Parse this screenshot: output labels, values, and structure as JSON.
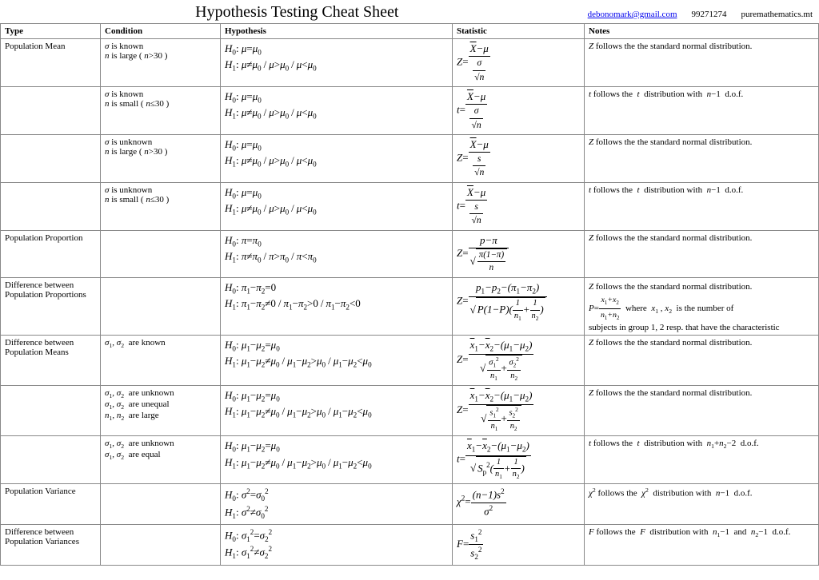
{
  "header": {
    "title": "Hypothesis Testing Cheat Sheet",
    "email": "debonomark@gmail.com",
    "id": "99271274",
    "site": "puremathematics.mt"
  },
  "columns": {
    "type": "Type",
    "condition": "Condition",
    "hypothesis": "Hypothesis",
    "statistic": "Statistic",
    "notes": "Notes"
  },
  "rows": [
    {
      "type": "Population Mean",
      "condition_html": "<span class='math'>σ</span> is known<br><span class='math'>n</span> is large ( <span class='math'>n</span>&gt;30 )",
      "hypothesis_html": "<span class='math'>H</span><sub>0</sub>: <span class='math'>μ</span>=<span class='math'>μ</span><sub>0</sub><br><span class='math'>H</span><sub>1</sub>: <span class='math'>μ</span>≠<span class='math'>μ</span><sub>0</sub><span class='sep'>/</span><span class='math'>μ</span>&gt;<span class='math'>μ</span><sub>0</sub><span class='sep'>/</span><span class='math'>μ</span>&lt;<span class='math'>μ</span><sub>0</sub>",
      "stat_html": "<span class='math'>Z</span>=<span class='frac'><span class='num'><span style='text-decoration:overline'>X</span>−μ</span><span class='den'><span class='frac' style='font-size:0.9em'><span class='num'>σ</span><span class='den'><span class='up'>√</span>n</span></span></span></span>",
      "notes_html": "<span class='math'>Z</span> follows the the standard normal distribution."
    },
    {
      "type": "",
      "condition_html": "<span class='math'>σ</span> is known<br><span class='math'>n</span> is small ( <span class='math'>n</span>≤30 )",
      "hypothesis_html": "<span class='math'>H</span><sub>0</sub>: <span class='math'>μ</span>=<span class='math'>μ</span><sub>0</sub><br><span class='math'>H</span><sub>1</sub>: <span class='math'>μ</span>≠<span class='math'>μ</span><sub>0</sub><span class='sep'>/</span><span class='math'>μ</span>&gt;<span class='math'>μ</span><sub>0</sub><span class='sep'>/</span><span class='math'>μ</span>&lt;<span class='math'>μ</span><sub>0</sub>",
      "stat_html": "<span class='math'>t</span>=<span class='frac'><span class='num'><span style='text-decoration:overline'>X</span>−μ</span><span class='den'><span class='frac' style='font-size:0.9em'><span class='num'>σ</span><span class='den'><span class='up'>√</span>n</span></span></span></span>",
      "notes_html": "<span class='math'>t</span> follows the &nbsp;<span class='math'>t</span>&nbsp; distribution with &nbsp;<span class='math'>n</span>−1&nbsp; d.o.f."
    },
    {
      "type": "",
      "condition_html": "<span class='math'>σ</span> is unknown<br><span class='math'>n</span> is large ( <span class='math'>n</span>&gt;30 )",
      "hypothesis_html": "<span class='math'>H</span><sub>0</sub>: <span class='math'>μ</span>=<span class='math'>μ</span><sub>0</sub><br><span class='math'>H</span><sub>1</sub>: <span class='math'>μ</span>≠<span class='math'>μ</span><sub>0</sub><span class='sep'>/</span><span class='math'>μ</span>&gt;<span class='math'>μ</span><sub>0</sub><span class='sep'>/</span><span class='math'>μ</span>&lt;<span class='math'>μ</span><sub>0</sub>",
      "stat_html": "<span class='math'>Z</span>=<span class='frac'><span class='num'><span style='text-decoration:overline'>X</span>−μ</span><span class='den'><span class='frac' style='font-size:0.9em'><span class='num'>s</span><span class='den'><span class='up'>√</span>n</span></span></span></span>",
      "notes_html": "<span class='math'>Z</span> follows the the standard normal distribution."
    },
    {
      "type": "",
      "condition_html": "<span class='math'>σ</span> is unknown<br><span class='math'>n</span> is small ( <span class='math'>n</span>≤30 )",
      "hypothesis_html": "<span class='math'>H</span><sub>0</sub>: <span class='math'>μ</span>=<span class='math'>μ</span><sub>0</sub><br><span class='math'>H</span><sub>1</sub>: <span class='math'>μ</span>≠<span class='math'>μ</span><sub>0</sub><span class='sep'>/</span><span class='math'>μ</span>&gt;<span class='math'>μ</span><sub>0</sub><span class='sep'>/</span><span class='math'>μ</span>&lt;<span class='math'>μ</span><sub>0</sub>",
      "stat_html": "<span class='math'>t</span>=<span class='frac'><span class='num'><span style='text-decoration:overline'>X</span>−μ</span><span class='den'><span class='frac' style='font-size:0.9em'><span class='num'>s</span><span class='den'><span class='up'>√</span>n</span></span></span></span>",
      "notes_html": "<span class='math'>t</span> follows the &nbsp;<span class='math'>t</span>&nbsp; distribution with &nbsp;<span class='math'>n</span>−1&nbsp; d.o.f."
    },
    {
      "type": "Population Proportion",
      "condition_html": "",
      "hypothesis_html": "<span class='math'>H</span><sub>0</sub>: <span class='math'>π</span>=<span class='math'>π</span><sub>0</sub><br><span class='math'>H</span><sub>1</sub>: <span class='math'>π</span>≠<span class='math'>π</span><sub>0</sub><span class='sep'>/</span><span class='math'>π</span>&gt;<span class='math'>π</span><sub>0</sub><span class='sep'>/</span><span class='math'>π</span>&lt;<span class='math'>π</span><sub>0</sub>",
      "stat_html": "<span class='math'>Z</span>=<span class='frac'><span class='num'>p−π</span><span class='den'><span class='sqrt'><span><span class='frac' style='font-size:0.85em'><span class='num'>π(1−π)</span><span class='den'>n</span></span></span></span></span></span>",
      "notes_html": "<span class='math'>Z</span> follows the the standard normal distribution."
    },
    {
      "type": "Difference between Population Proportions",
      "condition_html": "",
      "hypothesis_html": "<span class='math'>H</span><sub>0</sub>: <span class='math'>π</span><sub>1</sub>−<span class='math'>π</span><sub>2</sub>=0<br><span class='math'>H</span><sub>1</sub>: <span class='math'>π</span><sub>1</sub>−<span class='math'>π</span><sub>2</sub>≠0<span class='sep'>/</span><span class='math'>π</span><sub>1</sub>−<span class='math'>π</span><sub>2</sub>&gt;0<span class='sep'>/</span><span class='math'>π</span><sub>1</sub>−<span class='math'>π</span><sub>2</sub>&lt;0",
      "stat_html": "<span class='math'>Z</span>=<span class='frac'><span class='num'>p<sub>1</sub>−p<sub>2</sub>−(π<sub>1</sub>−π<sub>2</sub>)</span><span class='den'><span class='sqrt'><span>P(1−P)(<span class='frac' style='font-size:0.8em'><span class='num'>1</span><span class='den'>n<sub>1</sub></span></span>+<span class='frac' style='font-size:0.8em'><span class='num'>1</span><span class='den'>n<sub>2</sub></span></span>)</span></span></span></span>",
      "notes_html": "<span class='note-line'><span class='math'>Z</span> follows the the standard normal distribution.</span><br><span class='note-line'><span class='math'>P</span>=<span class='frac' style='font-size:0.9em'><span class='num'>x<sub>1</sub>+x<sub>2</sub></span><span class='den'>n<sub>1</sub>+n<sub>2</sub></span></span> &nbsp;where&nbsp; <span class='math'>x</span><sub>1</sub> , <span class='math'>x</span><sub>2</sub> &nbsp;is the number of</span><br>subjects in group 1, 2 resp. that have the characteristic"
    },
    {
      "type": "Difference between Population Means",
      "condition_html": "<span class='math'>σ</span><sub>1</sub>, <span class='math'>σ</span><sub>2</sub>&nbsp; are known",
      "hypothesis_html": "<span class='math'>H</span><sub>0</sub>: <span class='math'>μ</span><sub>1</sub>−<span class='math'>μ</span><sub>2</sub>=<span class='math'>μ</span><sub>0</sub><br><span class='math'>H</span><sub>1</sub>: <span class='math'>μ</span><sub>1</sub>−<span class='math'>μ</span><sub>2</sub>≠<span class='math'>μ</span><sub>0</sub><span class='sep'>/</span><span class='math'>μ</span><sub>1</sub>−<span class='math'>μ</span><sub>2</sub>&gt;<span class='math'>μ</span><sub>0</sub><span class='sep'>/</span><span class='math'>μ</span><sub>1</sub>−<span class='math'>μ</span><sub>2</sub>&lt;<span class='math'>μ</span><sub>0</sub>",
      "stat_html": "<span class='math'>Z</span>=<span class='frac'><span class='num'><span style='text-decoration:overline'>x</span><sub>1</sub>−<span style='text-decoration:overline'>x</span><sub>2</sub>−(μ<sub>1</sub>−μ<sub>2</sub>)</span><span class='den'><span class='sqrt'><span><span class='frac' style='font-size:0.8em'><span class='num'>σ<sub>1</sub><sup>2</sup></span><span class='den'>n<sub>1</sub></span></span>+<span class='frac' style='font-size:0.8em'><span class='num'>σ<sub>2</sub><sup>2</sup></span><span class='den'>n<sub>2</sub></span></span></span></span></span></span>",
      "notes_html": "<span class='math'>Z</span> follows the the standard normal distribution."
    },
    {
      "type": "",
      "condition_html": "<span class='math'>σ</span><sub>1</sub>, <span class='math'>σ</span><sub>2</sub>&nbsp; are unknown<br><span class='math'>σ</span><sub>1</sub>, <span class='math'>σ</span><sub>2</sub>&nbsp; are unequal<br><span class='math'>n</span><sub>1</sub>, <span class='math'>n</span><sub>2</sub>&nbsp; are large",
      "hypothesis_html": "<span class='math'>H</span><sub>0</sub>: <span class='math'>μ</span><sub>1</sub>−<span class='math'>μ</span><sub>2</sub>=<span class='math'>μ</span><sub>0</sub><br><span class='math'>H</span><sub>1</sub>: <span class='math'>μ</span><sub>1</sub>−<span class='math'>μ</span><sub>2</sub>≠<span class='math'>μ</span><sub>0</sub><span class='sep'>/</span><span class='math'>μ</span><sub>1</sub>−<span class='math'>μ</span><sub>2</sub>&gt;<span class='math'>μ</span><sub>0</sub><span class='sep'>/</span><span class='math'>μ</span><sub>1</sub>−<span class='math'>μ</span><sub>2</sub>&lt;<span class='math'>μ</span><sub>0</sub>",
      "stat_html": "<span class='math'>Z</span>=<span class='frac'><span class='num'><span style='text-decoration:overline'>x</span><sub>1</sub>−<span style='text-decoration:overline'>x</span><sub>2</sub>−(μ<sub>1</sub>−μ<sub>2</sub>)</span><span class='den'><span class='sqrt'><span><span class='frac' style='font-size:0.8em'><span class='num'>s<sub>1</sub><sup>2</sup></span><span class='den'>n<sub>1</sub></span></span>+<span class='frac' style='font-size:0.8em'><span class='num'>s<sub>2</sub><sup>2</sup></span><span class='den'>n<sub>2</sub></span></span></span></span></span></span>",
      "notes_html": "<span class='math'>Z</span> follows the the standard normal distribution."
    },
    {
      "type": "",
      "condition_html": "<span class='math'>σ</span><sub>1</sub>, <span class='math'>σ</span><sub>2</sub>&nbsp; are unknown<br><span class='math'>σ</span><sub>1</sub>, <span class='math'>σ</span><sub>2</sub>&nbsp; are equal",
      "hypothesis_html": "<span class='math'>H</span><sub>0</sub>: <span class='math'>μ</span><sub>1</sub>−<span class='math'>μ</span><sub>2</sub>=<span class='math'>μ</span><sub>0</sub><br><span class='math'>H</span><sub>1</sub>: <span class='math'>μ</span><sub>1</sub>−<span class='math'>μ</span><sub>2</sub>≠<span class='math'>μ</span><sub>0</sub><span class='sep'>/</span><span class='math'>μ</span><sub>1</sub>−<span class='math'>μ</span><sub>2</sub>&gt;<span class='math'>μ</span><sub>0</sub><span class='sep'>/</span><span class='math'>μ</span><sub>1</sub>−<span class='math'>μ</span><sub>2</sub>&lt;<span class='math'>μ</span><sub>0</sub>",
      "stat_html": "<span class='math'>t</span>=<span class='frac'><span class='num'><span style='text-decoration:overline'>x</span><sub>1</sub>−<span style='text-decoration:overline'>x</span><sub>2</sub>−(μ<sub>1</sub>−μ<sub>2</sub>)</span><span class='den'><span class='sqrt'><span>S<sub>p</sub><sup>2</sup>(<span class='frac' style='font-size:0.8em'><span class='num'>1</span><span class='den'>n<sub>1</sub></span></span>+<span class='frac' style='font-size:0.8em'><span class='num'>1</span><span class='den'>n<sub>2</sub></span></span>)</span></span></span></span>",
      "notes_html": "<span class='math'>t</span> follows the &nbsp;<span class='math'>t</span>&nbsp; distribution with &nbsp;<span class='math'>n</span><sub>1</sub>+<span class='math'>n</span><sub>2</sub>−2&nbsp; d.o.f."
    },
    {
      "type": "Population Variance",
      "condition_html": "",
      "hypothesis_html": "<span class='math'>H</span><sub>0</sub>: <span class='math'>σ</span><sup>2</sup>=<span class='math'>σ</span><sub>0</sub><sup>2</sup><br><span class='math'>H</span><sub>1</sub>: <span class='math'>σ</span><sup>2</sup>≠<span class='math'>σ</span><sub>0</sub><sup>2</sup>",
      "stat_html": "<span class='math'>χ</span><sup>2</sup>=<span class='frac'><span class='num'>(n−1)s<sup>2</sup></span><span class='den'>σ<sup>2</sup></span></span>",
      "notes_html": "<span class='math'>χ</span><sup>2</sup> follows the &nbsp;<span class='math'>χ</span><sup>2</sup>&nbsp; distribution with &nbsp;<span class='math'>n</span>−1&nbsp; d.o.f."
    },
    {
      "type": "Difference between Population Variances",
      "condition_html": "",
      "hypothesis_html": "<span class='math'>H</span><sub>0</sub>: <span class='math'>σ</span><sub>1</sub><sup>2</sup>=<span class='math'>σ</span><sub>2</sub><sup>2</sup><br><span class='math'>H</span><sub>1</sub>: <span class='math'>σ</span><sub>1</sub><sup>2</sup>≠<span class='math'>σ</span><sub>2</sub><sup>2</sup>",
      "stat_html": "<span class='math'>F</span>=<span class='frac'><span class='num'>s<sub>1</sub><sup>2</sup></span><span class='den'>s<sub>2</sub><sup>2</sup></span></span>",
      "notes_html": "<span class='math'>F</span> follows the &nbsp;<span class='math'>F</span>&nbsp; distribution with &nbsp;<span class='math'>n</span><sub>1</sub>−1&nbsp; and &nbsp;<span class='math'>n</span><sub>2</sub>−1&nbsp; d.o.f."
    }
  ]
}
